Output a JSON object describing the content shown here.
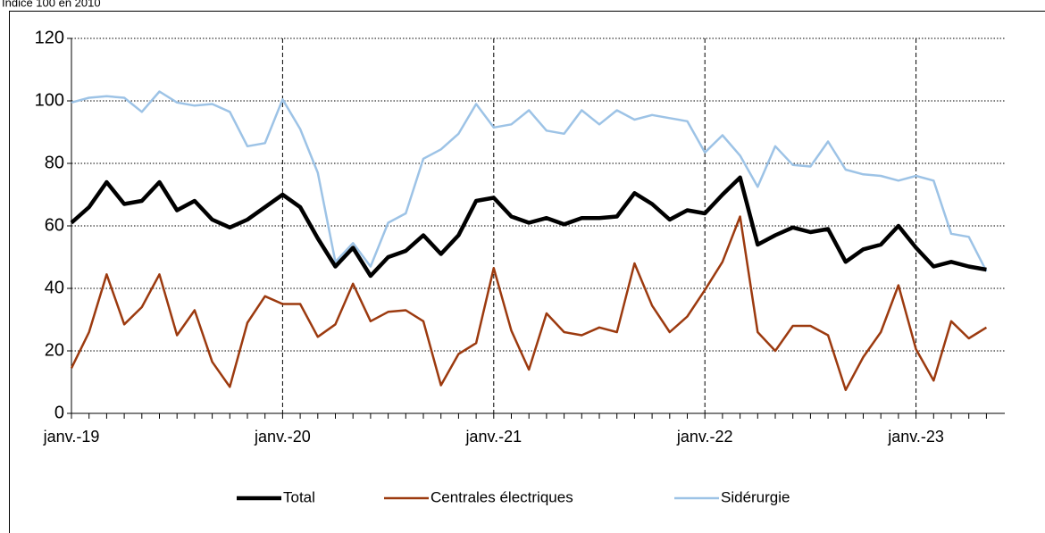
{
  "chart_data": {
    "type": "line",
    "subtitle": "Indice 100 en 2010",
    "categories": [
      "janv.-19",
      null,
      null,
      null,
      null,
      null,
      null,
      null,
      null,
      null,
      null,
      null,
      "janv.-20",
      null,
      null,
      null,
      null,
      null,
      null,
      null,
      null,
      null,
      null,
      null,
      "janv.-21",
      null,
      null,
      null,
      null,
      null,
      null,
      null,
      null,
      null,
      null,
      null,
      "janv.-22",
      null,
      null,
      null,
      null,
      null,
      null,
      null,
      null,
      null,
      null,
      null,
      "janv.-23",
      null,
      null,
      null,
      null
    ],
    "series": [
      {
        "name": "Total",
        "color": "#000000",
        "values": [
          61,
          66,
          74,
          67,
          68,
          74,
          65,
          68,
          62,
          59.5,
          62,
          66,
          70,
          66,
          56,
          47,
          53,
          44,
          50,
          52,
          57,
          51,
          57,
          68,
          69,
          63,
          61,
          62.5,
          60.5,
          62.5,
          62.5,
          63,
          70.5,
          67,
          62,
          65,
          64,
          70,
          75.5,
          54,
          57,
          59.5,
          58,
          59,
          48.5,
          52.5,
          54,
          60,
          53,
          47,
          48.5,
          47,
          46
        ]
      },
      {
        "name": "Centrales électriques",
        "color": "#9c3a0f",
        "values": [
          14.5,
          26,
          44.5,
          28.5,
          34,
          44.5,
          25,
          33,
          16.5,
          8.5,
          29,
          37.5,
          35,
          35,
          24.5,
          28.5,
          41.5,
          29.5,
          32.5,
          33,
          29.5,
          9,
          19,
          22.5,
          46.5,
          26.5,
          14,
          32,
          26,
          25,
          27.5,
          26,
          48,
          34.5,
          26,
          31,
          39.5,
          48.5,
          63,
          26,
          20,
          28,
          28,
          25,
          7.5,
          18,
          26,
          41,
          20.5,
          10.5,
          29.5,
          24,
          27.5
        ]
      },
      {
        "name": "Sidérurgie",
        "color": "#9dc3e6",
        "values": [
          99.5,
          101,
          101.5,
          101,
          96.5,
          103,
          99.5,
          98.5,
          99,
          96.5,
          85.5,
          86.5,
          100.5,
          91,
          77,
          48.5,
          54.5,
          47,
          61,
          64,
          81.5,
          84.5,
          89.5,
          99,
          91.5,
          92.5,
          97,
          90.5,
          89.5,
          97,
          92.5,
          97,
          94,
          95.5,
          94.5,
          93.5,
          83.5,
          89,
          82.5,
          72.5,
          85.5,
          79.5,
          79,
          87,
          78,
          76.5,
          76,
          74.5,
          76,
          74.5,
          57.5,
          56.5,
          45.5
        ]
      }
    ],
    "ylim": [
      0,
      120
    ],
    "yticks": [
      0,
      20,
      40,
      60,
      80,
      100,
      120
    ],
    "grid": true,
    "legend": "bottom"
  }
}
